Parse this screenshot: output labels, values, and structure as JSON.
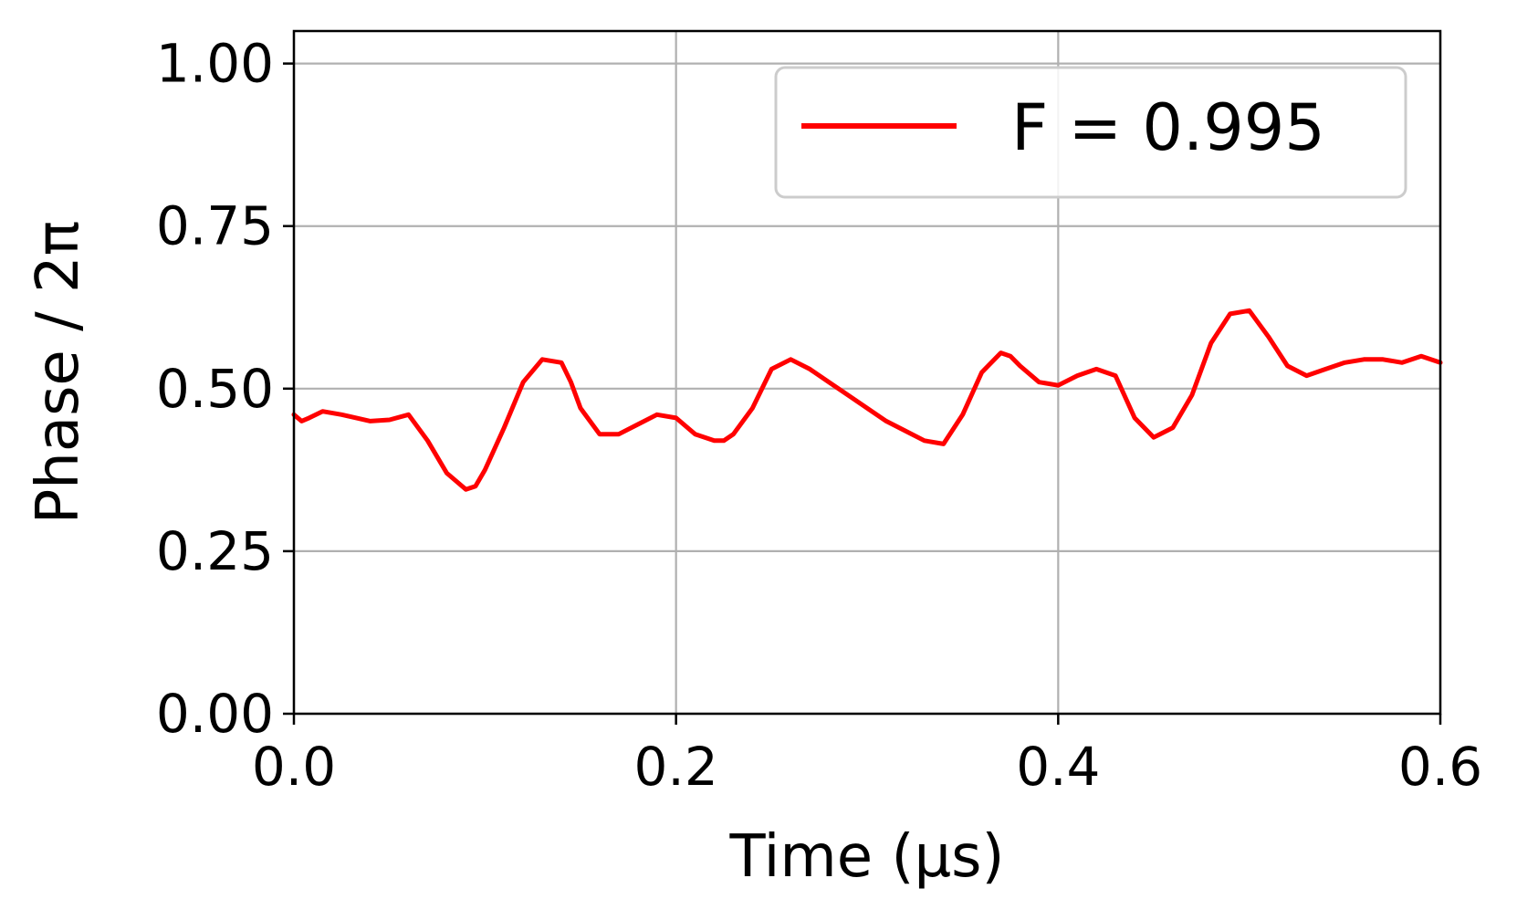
{
  "chart_data": {
    "type": "line",
    "title": "",
    "xlabel": "Time (μs)",
    "ylabel": "Phase / 2π",
    "xlim": [
      0.0,
      0.6
    ],
    "ylim": [
      0.0,
      1.05
    ],
    "xticks": [
      0.0,
      0.2,
      0.4,
      0.6
    ],
    "xtick_labels": [
      "0.0",
      "0.2",
      "0.4",
      "0.6"
    ],
    "yticks": [
      0.0,
      0.25,
      0.5,
      0.75,
      1.0
    ],
    "ytick_labels": [
      "0.00",
      "0.25",
      "0.50",
      "0.75",
      "1.00"
    ],
    "grid": true,
    "legend_position": "top-right",
    "series": [
      {
        "name": "F = 0.995",
        "color": "#ff0000",
        "x": [
          0.0,
          0.004,
          0.008,
          0.015,
          0.025,
          0.04,
          0.05,
          0.06,
          0.07,
          0.08,
          0.09,
          0.095,
          0.1,
          0.11,
          0.12,
          0.13,
          0.14,
          0.145,
          0.15,
          0.16,
          0.17,
          0.18,
          0.19,
          0.2,
          0.21,
          0.22,
          0.225,
          0.23,
          0.24,
          0.25,
          0.26,
          0.27,
          0.28,
          0.29,
          0.3,
          0.31,
          0.32,
          0.33,
          0.34,
          0.35,
          0.36,
          0.37,
          0.375,
          0.38,
          0.39,
          0.4,
          0.41,
          0.42,
          0.43,
          0.44,
          0.45,
          0.46,
          0.47,
          0.48,
          0.49,
          0.5,
          0.51,
          0.52,
          0.53,
          0.54,
          0.55,
          0.56,
          0.57,
          0.58,
          0.59,
          0.6
        ],
        "y": [
          0.46,
          0.45,
          0.455,
          0.465,
          0.46,
          0.45,
          0.452,
          0.46,
          0.42,
          0.37,
          0.345,
          0.35,
          0.375,
          0.44,
          0.51,
          0.545,
          0.54,
          0.51,
          0.47,
          0.43,
          0.43,
          0.445,
          0.46,
          0.455,
          0.43,
          0.42,
          0.42,
          0.43,
          0.47,
          0.53,
          0.545,
          0.53,
          0.51,
          0.49,
          0.47,
          0.45,
          0.435,
          0.42,
          0.415,
          0.46,
          0.525,
          0.555,
          0.55,
          0.535,
          0.51,
          0.505,
          0.52,
          0.53,
          0.52,
          0.455,
          0.425,
          0.44,
          0.49,
          0.57,
          0.615,
          0.62,
          0.58,
          0.535,
          0.52,
          0.53,
          0.54,
          0.545,
          0.545,
          0.54,
          0.55,
          0.54
        ]
      }
    ]
  }
}
